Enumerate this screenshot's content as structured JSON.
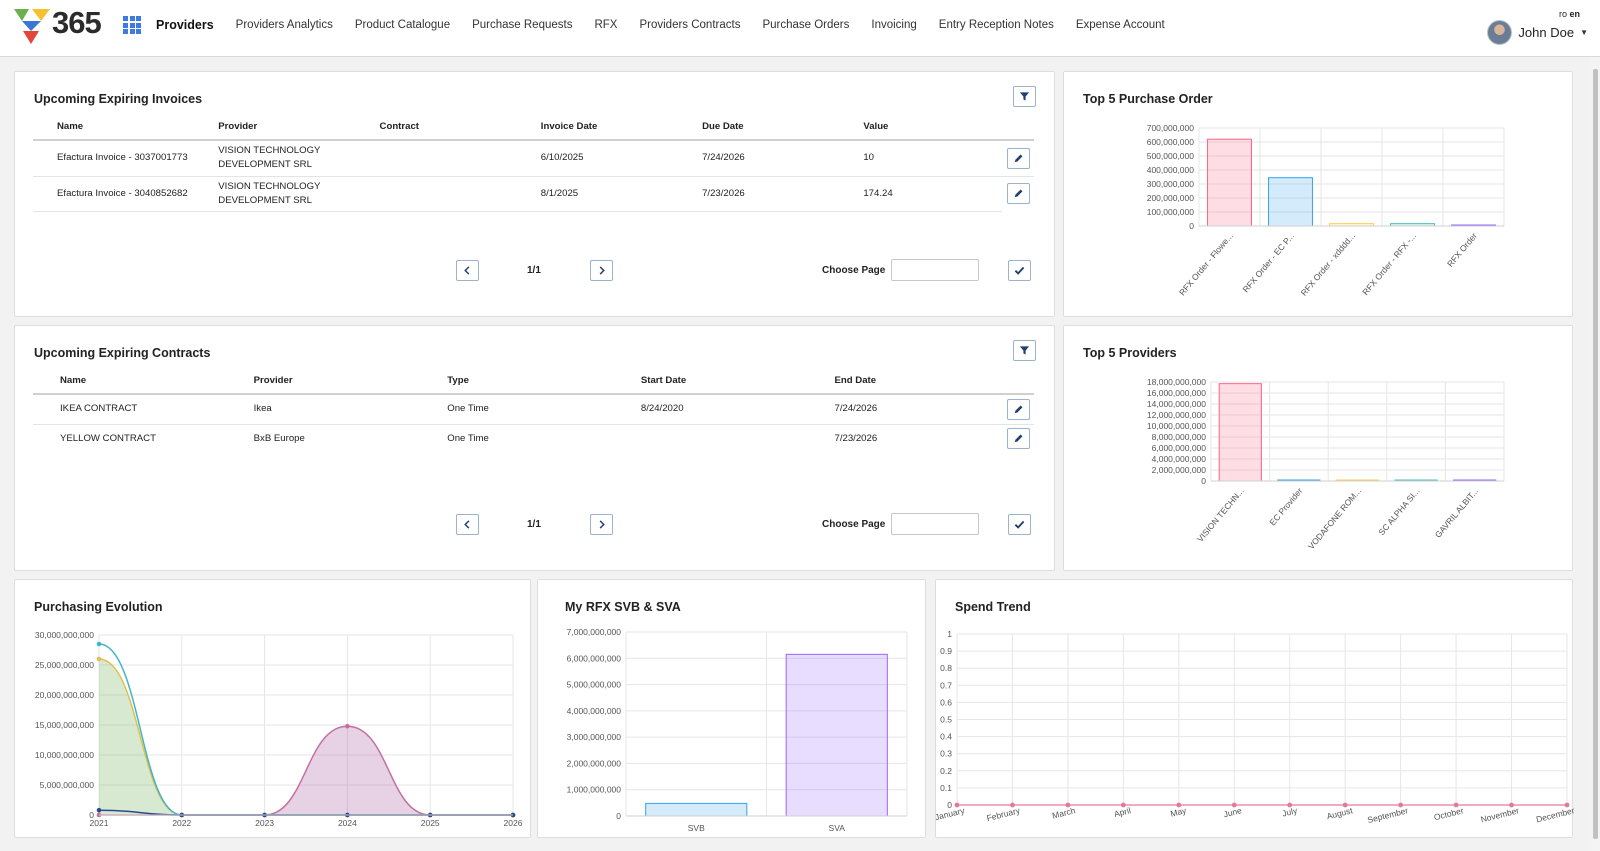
{
  "header": {
    "logo_text": "365",
    "nav": [
      "Providers",
      "Providers Analytics",
      "Product Catalogue",
      "Purchase Requests",
      "RFX",
      "Providers Contracts",
      "Purchase Orders",
      "Invoicing",
      "Entry Reception Notes",
      "Expense Account"
    ],
    "lang_ro": "ro",
    "lang_en": "en",
    "user_name": "John Doe"
  },
  "invoices": {
    "title": "Upcoming Expiring Invoices",
    "columns": [
      "Name",
      "Provider",
      "Contract",
      "Invoice Date",
      "Due Date",
      "Value"
    ],
    "rows": [
      {
        "name": "Efactura Invoice - 3037001773",
        "provider_line1": "VISION TECHNOLOGY",
        "provider_line2": "DEVELOPMENT SRL",
        "contract": "",
        "invoice_date": "6/10/2025",
        "due_date": "7/24/2026",
        "value": "10"
      },
      {
        "name": "Efactura Invoice - 3040852682",
        "provider_line1": "VISION TECHNOLOGY",
        "provider_line2": "DEVELOPMENT SRL",
        "contract": "",
        "invoice_date": "8/1/2025",
        "due_date": "7/23/2026",
        "value": "174.24"
      }
    ],
    "page": "1/1",
    "choose_page_label": "Choose Page"
  },
  "contracts": {
    "title": "Upcoming Expiring Contracts",
    "columns": [
      "Name",
      "Provider",
      "Type",
      "Start Date",
      "End Date"
    ],
    "rows": [
      {
        "name": "IKEA CONTRACT",
        "provider": "Ikea",
        "type": "One Time",
        "start_date": "8/24/2020",
        "end_date": "7/24/2026"
      },
      {
        "name": "YELLOW CONTRACT",
        "provider": "BxB Europe",
        "type": "One Time",
        "start_date": "",
        "end_date": "7/23/2026"
      }
    ],
    "page": "1/1",
    "choose_page_label": "Choose Page"
  },
  "chart_data": [
    {
      "id": "top5po",
      "title": "Top 5 Purchase Order",
      "type": "bar",
      "categories": [
        "RFX Order - Flowe...",
        "RFX Order - EC P...",
        "RFX Order - xdddd...",
        "RFX Order - RFX -...",
        "RFX Order"
      ],
      "values": [
        620000000,
        345000000,
        17000000,
        17000000,
        4000000
      ],
      "colors": [
        "#ff6384",
        "#36a2eb",
        "#ffcd56",
        "#4bc0c0",
        "#9966ff"
      ],
      "ylim": [
        0,
        700000000
      ],
      "yticks": [
        "700,000,000",
        "600,000,000",
        "500,000,000",
        "400,000,000",
        "300,000,000",
        "200,000,000",
        "100,000,000",
        "0"
      ]
    },
    {
      "id": "top5prov",
      "title": "Top 5 Providers",
      "type": "bar",
      "categories": [
        "VISION TECHN...",
        "EC Provider",
        "VODAFONE ROM...",
        "SC ALPHA SI...",
        "GAVRIL ALBIT..."
      ],
      "values": [
        17700000000,
        30000000,
        25000000,
        25000000,
        20000000
      ],
      "colors": [
        "#ff6384",
        "#36a2eb",
        "#ffcd56",
        "#4bc0c0",
        "#9966ff"
      ],
      "ylim": [
        0,
        18000000000
      ],
      "yticks": [
        "18,000,000,000",
        "16,000,000,000",
        "14,000,000,000",
        "12,000,000,000",
        "10,000,000,000",
        "8,000,000,000",
        "6,000,000,000",
        "4,000,000,000",
        "2,000,000,000",
        "0"
      ]
    },
    {
      "id": "evolution",
      "title": "Purchasing Evolution",
      "type": "area",
      "x": [
        "2021",
        "2022",
        "2023",
        "2024",
        "2025",
        "2026"
      ],
      "ylim": [
        0,
        30000000000
      ],
      "yticks": [
        "30,000,000,000",
        "25,000,000,000",
        "20,000,000,000",
        "15,000,000,000",
        "10,000,000,000",
        "5,000,000,000",
        "0"
      ],
      "series": [
        {
          "values": [
            26000000000,
            0,
            0,
            0,
            0,
            0
          ],
          "color": "#e0c050",
          "fill": "rgba(110,180,90,0.28)"
        },
        {
          "values": [
            28500000000,
            0,
            0,
            0,
            0,
            0
          ],
          "color": "#3fb5c6",
          "fill": "none"
        },
        {
          "values": [
            0,
            0,
            0,
            14800000000,
            0,
            0
          ],
          "color": "#c4709f",
          "fill": "rgba(170,90,160,0.28)"
        },
        {
          "values": [
            800000000,
            0,
            0,
            0,
            0,
            0
          ],
          "color": "#2b4a8c",
          "fill": "none"
        }
      ]
    },
    {
      "id": "rfx",
      "title": "My RFX SVB & SVA",
      "type": "bar",
      "categories": [
        "SVB",
        "SVA"
      ],
      "values": [
        480000000,
        6150000000
      ],
      "colors": [
        "#36a2eb",
        "#9966ff"
      ],
      "ylim": [
        0,
        7000000000
      ],
      "yticks": [
        "7,000,000,000",
        "6,000,000,000",
        "5,000,000,000",
        "4,000,000,000",
        "3,000,000,000",
        "2,000,000,000",
        "1,000,000,000",
        "0"
      ]
    },
    {
      "id": "spend",
      "title": "Spend Trend",
      "type": "line",
      "x": [
        "January",
        "February",
        "March",
        "April",
        "May",
        "June",
        "July",
        "August",
        "September",
        "October",
        "November",
        "December"
      ],
      "values": [
        0,
        0,
        0,
        0,
        0,
        0,
        0,
        0,
        0,
        0,
        0,
        0
      ],
      "color": "#e37a9a",
      "ylim": [
        0,
        1
      ],
      "yticks": [
        "1",
        "0.9",
        "0.8",
        "0.7",
        "0.6",
        "0.5",
        "0.4",
        "0.3",
        "0.2",
        "0.1",
        "0"
      ]
    }
  ]
}
